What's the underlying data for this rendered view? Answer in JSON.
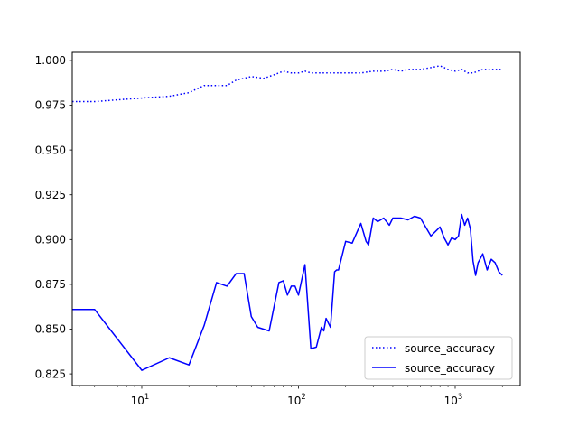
{
  "chart_data": {
    "type": "line",
    "title": "",
    "xlabel": "",
    "ylabel": "",
    "xscale": "log",
    "xlim": [
      3.6,
      2600
    ],
    "ylim": [
      0.8185,
      1.0045
    ],
    "grid": false,
    "legend_position": "lower-right",
    "x_ticks": [
      {
        "value": 10,
        "base": "10",
        "exp": "1"
      },
      {
        "value": 100,
        "base": "10",
        "exp": "2"
      },
      {
        "value": 1000,
        "base": "10",
        "exp": "3"
      }
    ],
    "y_ticks": [
      {
        "value": 0.825,
        "label": "0.825"
      },
      {
        "value": 0.85,
        "label": "0.850"
      },
      {
        "value": 0.875,
        "label": "0.875"
      },
      {
        "value": 0.9,
        "label": "0.900"
      },
      {
        "value": 0.925,
        "label": "0.925"
      },
      {
        "value": 0.95,
        "label": "0.950"
      },
      {
        "value": 0.975,
        "label": "0.975"
      },
      {
        "value": 1.0,
        "label": "1.000"
      }
    ],
    "series": [
      {
        "name": "source_accuracy",
        "color": "#0000ff",
        "linestyle": "dotted",
        "x": [
          3.6,
          5,
          7,
          10,
          15,
          20,
          25,
          30,
          35,
          40,
          45,
          50,
          60,
          70,
          80,
          90,
          100,
          110,
          120,
          150,
          200,
          250,
          300,
          350,
          400,
          450,
          500,
          600,
          700,
          800,
          900,
          1000,
          1100,
          1200,
          1300,
          1500,
          1700,
          2000
        ],
        "y": [
          0.977,
          0.977,
          0.978,
          0.979,
          0.98,
          0.982,
          0.986,
          0.986,
          0.986,
          0.989,
          0.99,
          0.991,
          0.99,
          0.992,
          0.994,
          0.993,
          0.993,
          0.994,
          0.993,
          0.993,
          0.993,
          0.993,
          0.994,
          0.994,
          0.995,
          0.994,
          0.995,
          0.995,
          0.996,
          0.997,
          0.995,
          0.994,
          0.995,
          0.993,
          0.993,
          0.995,
          0.995,
          0.995
        ]
      },
      {
        "name": "source_accuracy",
        "color": "#0000ff",
        "linestyle": "solid",
        "x": [
          3.6,
          5,
          10,
          15,
          20,
          25,
          30,
          35,
          40,
          45,
          50,
          55,
          65,
          75,
          80,
          85,
          90,
          95,
          100,
          110,
          120,
          130,
          140,
          145,
          150,
          160,
          170,
          175,
          180,
          200,
          220,
          250,
          270,
          280,
          300,
          320,
          350,
          380,
          400,
          450,
          500,
          550,
          600,
          700,
          800,
          850,
          900,
          950,
          1000,
          1050,
          1100,
          1150,
          1200,
          1250,
          1300,
          1350,
          1400,
          1500,
          1600,
          1700,
          1800,
          1900,
          2000
        ],
        "y": [
          0.861,
          0.861,
          0.827,
          0.834,
          0.83,
          0.852,
          0.876,
          0.874,
          0.881,
          0.881,
          0.857,
          0.851,
          0.849,
          0.876,
          0.877,
          0.869,
          0.874,
          0.874,
          0.869,
          0.886,
          0.839,
          0.84,
          0.851,
          0.849,
          0.856,
          0.851,
          0.882,
          0.883,
          0.883,
          0.899,
          0.898,
          0.909,
          0.899,
          0.897,
          0.912,
          0.91,
          0.912,
          0.908,
          0.912,
          0.912,
          0.911,
          0.913,
          0.912,
          0.902,
          0.907,
          0.901,
          0.897,
          0.901,
          0.9,
          0.902,
          0.914,
          0.908,
          0.912,
          0.906,
          0.888,
          0.88,
          0.887,
          0.892,
          0.883,
          0.889,
          0.887,
          0.882,
          0.88
        ]
      }
    ]
  }
}
